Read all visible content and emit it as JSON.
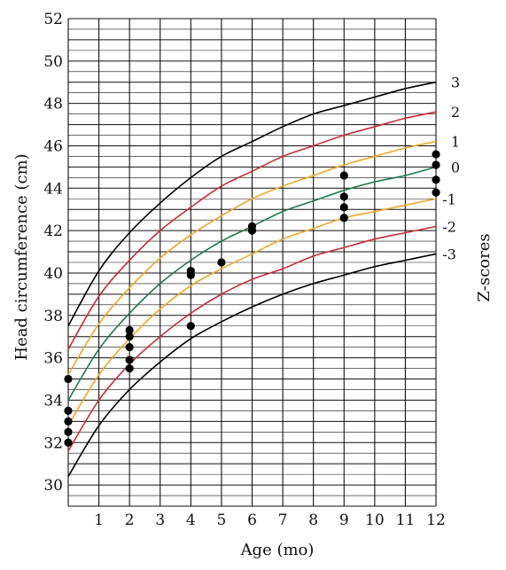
{
  "chart_data": {
    "type": "line",
    "title": "",
    "xlabel": "Age (mo)",
    "ylabel": "Head circumference (cm)",
    "right_label": "Z-scores",
    "xlim": [
      0,
      12
    ],
    "ylim": [
      29,
      52
    ],
    "x_ticks": [
      1,
      2,
      3,
      4,
      5,
      6,
      7,
      8,
      9,
      10,
      11,
      12
    ],
    "y_ticks": [
      30,
      32,
      34,
      36,
      38,
      40,
      42,
      44,
      46,
      48,
      50,
      52
    ],
    "grid": true,
    "x": [
      0,
      1,
      2,
      3,
      4,
      5,
      6,
      7,
      8,
      9,
      10,
      11,
      12
    ],
    "series": [
      {
        "name": "3",
        "color": "#000000",
        "values": [
          37.5,
          40.1,
          41.9,
          43.3,
          44.5,
          45.5,
          46.2,
          46.9,
          47.5,
          47.9,
          48.3,
          48.7,
          49.0
        ]
      },
      {
        "name": "2",
        "color": "#cc2a36",
        "values": [
          36.4,
          38.9,
          40.6,
          42.0,
          43.1,
          44.1,
          44.8,
          45.5,
          46.0,
          46.5,
          46.9,
          47.3,
          47.6
        ]
      },
      {
        "name": "1",
        "color": "#f2a623",
        "values": [
          35.2,
          37.6,
          39.3,
          40.7,
          41.8,
          42.7,
          43.5,
          44.1,
          44.6,
          45.1,
          45.5,
          45.9,
          46.2
        ]
      },
      {
        "name": "0",
        "color": "#1b7a4a",
        "values": [
          34.0,
          36.4,
          38.1,
          39.5,
          40.6,
          41.5,
          42.2,
          42.9,
          43.4,
          43.9,
          44.3,
          44.6,
          45.0
        ]
      },
      {
        "name": "-1",
        "color": "#f2a623",
        "values": [
          32.8,
          35.2,
          36.9,
          38.3,
          39.4,
          40.2,
          40.9,
          41.6,
          42.1,
          42.6,
          42.9,
          43.2,
          43.5
        ]
      },
      {
        "name": "-2",
        "color": "#cc2a36",
        "values": [
          31.6,
          34.0,
          35.7,
          37.0,
          38.1,
          39.0,
          39.7,
          40.2,
          40.8,
          41.2,
          41.6,
          41.9,
          42.2
        ]
      },
      {
        "name": "-3",
        "color": "#000000",
        "values": [
          30.4,
          32.8,
          34.5,
          35.8,
          36.9,
          37.7,
          38.4,
          39.0,
          39.5,
          39.9,
          40.3,
          40.6,
          40.9
        ]
      }
    ],
    "points": [
      {
        "x": 0,
        "y": 35.0
      },
      {
        "x": 0,
        "y": 33.5
      },
      {
        "x": 0,
        "y": 33.0
      },
      {
        "x": 0,
        "y": 32.5
      },
      {
        "x": 0,
        "y": 32.0
      },
      {
        "x": 2,
        "y": 37.3
      },
      {
        "x": 2,
        "y": 37.0
      },
      {
        "x": 2,
        "y": 36.5
      },
      {
        "x": 2,
        "y": 35.9
      },
      {
        "x": 2,
        "y": 35.5
      },
      {
        "x": 4,
        "y": 40.1
      },
      {
        "x": 4,
        "y": 39.9
      },
      {
        "x": 4,
        "y": 37.5
      },
      {
        "x": 5,
        "y": 40.5
      },
      {
        "x": 6,
        "y": 42.2
      },
      {
        "x": 6,
        "y": 42.0
      },
      {
        "x": 9,
        "y": 44.6
      },
      {
        "x": 9,
        "y": 43.6
      },
      {
        "x": 9,
        "y": 43.1
      },
      {
        "x": 9,
        "y": 42.6
      },
      {
        "x": 12,
        "y": 45.6
      },
      {
        "x": 12,
        "y": 45.1
      },
      {
        "x": 12,
        "y": 44.4
      },
      {
        "x": 12,
        "y": 43.8
      }
    ],
    "point_color": "#000000"
  }
}
